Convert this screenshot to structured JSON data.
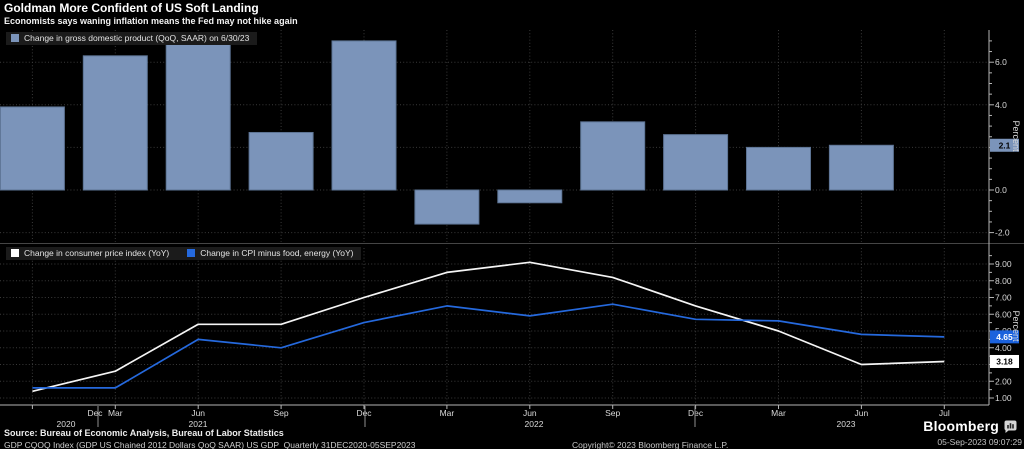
{
  "header": {
    "title": "Goldman More Confident of US Soft Landing",
    "subtitle": "Economists says waning inflation means the Fed may not hike again"
  },
  "colors": {
    "background": "#000000",
    "bar": "#7b94ba",
    "bar_border": "#5d7494",
    "white_line": "#f5f5f5",
    "blue_line": "#2569dd",
    "grid": "#3a3a3a",
    "axis": "#b5b5b5",
    "axis_text": "#d9d9d9",
    "legend_bg": "#1b1b1b",
    "tag_gdp_bg": "#7b94ba",
    "tag_cpi_bg": "#ffffff",
    "tag_core_bg": "#1b62dd",
    "divider": "#454545"
  },
  "chart_data": [
    {
      "type": "bar",
      "panel": "top",
      "legend": "Change in gross domestic product (QoQ, SAAR) on 6/30/23",
      "categories": [
        "Dec 2020",
        "Mar 2021",
        "Jun 2021",
        "Sep 2021",
        "Dec 2021",
        "Mar 2022",
        "Jun 2022",
        "Sep 2022",
        "Dec 2022",
        "Mar 2023",
        "Jun 2023"
      ],
      "values": [
        3.9,
        6.3,
        7.0,
        2.7,
        7.0,
        -1.6,
        -0.6,
        3.2,
        2.6,
        2.0,
        2.1
      ],
      "ylabel": "Percent",
      "ylim": [
        -2.4,
        7.5
      ],
      "ytick_values": [
        6,
        4,
        0,
        -2
      ],
      "ytick_labels": [
        "6.0",
        "4.0",
        "0.0",
        "-2.0"
      ],
      "grid_values": [
        6,
        4,
        2,
        0,
        -2
      ],
      "last_value_tag": "2.1",
      "grid": true,
      "legend_position": "top-left"
    },
    {
      "type": "line",
      "panel": "bottom",
      "categories": [
        "Dec 2020",
        "Mar 2021",
        "Jun 2021",
        "Sep 2021",
        "Dec 2021",
        "Mar 2022",
        "Jun 2022",
        "Sep 2022",
        "Dec 2022",
        "Mar 2023",
        "Jun 2023",
        "Jul 2023"
      ],
      "x_labels": [
        "Dec",
        "Mar",
        "Jun",
        "Sep",
        "Dec",
        "Mar",
        "Jun",
        "Sep",
        "Dec",
        "Mar",
        "Jun",
        "Jul"
      ],
      "year_labels": [
        "2020",
        "2021",
        "2022",
        "2023"
      ],
      "series": [
        {
          "name": "Change in consumer price index (YoY)",
          "color_key": "white_line",
          "values": [
            1.4,
            2.6,
            5.4,
            5.4,
            7.0,
            8.5,
            9.1,
            8.2,
            6.5,
            5.0,
            3.0,
            3.18
          ],
          "last_value_tag": "3.18"
        },
        {
          "name": "Change in CPI minus food, energy (YoY)",
          "color_key": "blue_line",
          "values": [
            1.6,
            1.6,
            4.5,
            4.0,
            5.5,
            6.5,
            5.9,
            6.6,
            5.7,
            5.6,
            4.8,
            4.65
          ],
          "last_value_tag": "4.65"
        }
      ],
      "ylabel": "Percent",
      "ylim": [
        0.6,
        10.0
      ],
      "ytick_values": [
        1,
        2,
        3,
        4,
        5,
        6,
        7,
        8,
        9
      ],
      "ytick_labels": [
        "1.00",
        "2.00",
        "3.00",
        "4.00",
        "5.00",
        "6.00",
        "7.00",
        "8.00",
        "9.00"
      ],
      "grid": true,
      "legend_position": "top-left"
    }
  ],
  "footer": {
    "source": "Source: Bureau of Economic Analysis, Bureau of Labor Statistics",
    "security": "GDP CQOQ Index (GDP US Chained 2012 Dollars QoQ SAAR) US GDP  Quarterly 31DEC2020-05SEP2023",
    "copyright": "Copyright© 2023 Bloomberg Finance L.P.",
    "brand": "Bloomberg",
    "timestamp": "05-Sep-2023 09:07:29"
  }
}
